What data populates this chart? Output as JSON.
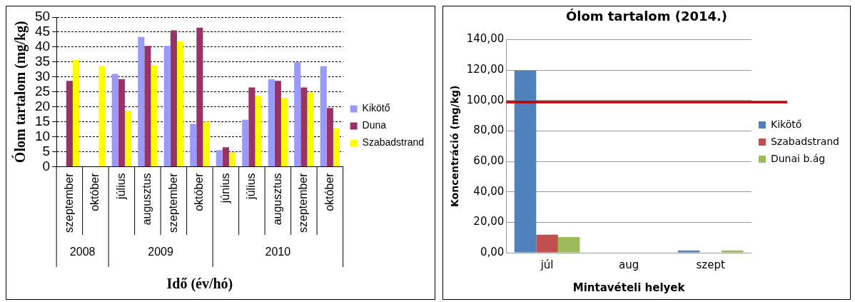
{
  "chart_data": [
    {
      "type": "bar",
      "xlabel": "Idő (év/hó)",
      "ylabel": "Ólom tartalom (mg/kg)",
      "categories": [
        "szeptember",
        "október",
        "július",
        "augusztus",
        "szeptember",
        "október",
        "június",
        "július",
        "augusztus",
        "szeptember",
        "október"
      ],
      "series": [
        {
          "name": "Kikötő",
          "color": "#9999ff",
          "values": [
            null,
            null,
            31,
            43.4,
            40.4,
            14.3,
            5.5,
            15.7,
            29.2,
            34.9,
            33.6
          ]
        },
        {
          "name": "Duna",
          "color": "#993366",
          "values": [
            28.7,
            null,
            29.3,
            40.4,
            45.6,
            46.5,
            6.5,
            26.5,
            28.7,
            26.5,
            19.6
          ]
        },
        {
          "name": "Szabadstrand",
          "color": "#ffff00",
          "values": [
            35.7,
            33.6,
            18.7,
            34,
            42,
            15,
            4.9,
            23.7,
            23,
            24.7,
            12.9
          ]
        }
      ],
      "ylim": [
        0,
        50
      ],
      "yticks": [
        0,
        5,
        10,
        15,
        20,
        25,
        30,
        35,
        40,
        45,
        50
      ],
      "grid": "y",
      "legend": "right",
      "annotations": [
        "2008",
        "2009",
        "2010"
      ]
    },
    {
      "type": "bar",
      "title": "Ólom tartalom (2014.)",
      "xlabel": "Mintavételi helyek",
      "ylabel": "Koncentráció (mg/kg)",
      "categories": [
        "júl",
        "aug",
        "szept"
      ],
      "series": [
        {
          "name": "Kikötő",
          "color": "#4f81bd",
          "values": [
            119.6,
            null,
            1.5
          ]
        },
        {
          "name": "Szabadstrand",
          "color": "#c0504d",
          "values": [
            11.9,
            null,
            null
          ]
        },
        {
          "name": "Dunai b.ág",
          "color": "#9bbb59",
          "values": [
            10.3,
            null,
            1.5
          ]
        }
      ],
      "ylim": [
        0,
        140
      ],
      "yticks": [
        {
          "value": 0,
          "label": "0,00"
        },
        {
          "value": 20,
          "label": "20,00"
        },
        {
          "value": 40,
          "label": "40,00"
        },
        {
          "value": 60,
          "label": "60,00"
        },
        {
          "value": 80,
          "label": "80,00"
        },
        {
          "value": 100,
          "label": "100,00"
        },
        {
          "value": 120,
          "label": "120,00"
        },
        {
          "value": 140,
          "label": "140,00"
        }
      ],
      "grid": "y",
      "legend": "right",
      "ref_lines": [
        {
          "axis": "y",
          "value": 99,
          "color": "#c00000"
        }
      ]
    }
  ]
}
